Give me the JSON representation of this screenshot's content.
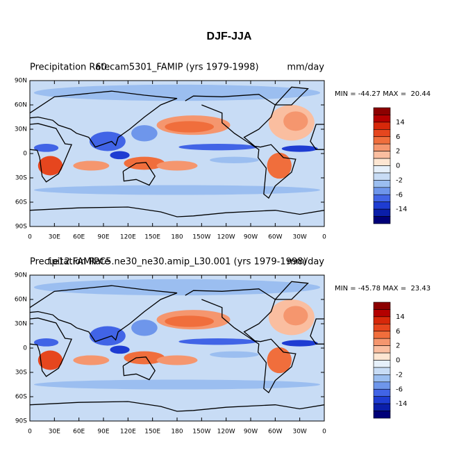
{
  "title": "DJF-JJA",
  "lon_ticks": [
    0,
    {
      "value": 30,
      "label": "30E"
    },
    {
      "value": 60,
      "label": "60E"
    },
    {
      "value": 90,
      "label": "90E"
    },
    {
      "value": 120,
      "label": "120E"
    },
    {
      "value": 150,
      "label": "150E"
    },
    {
      "value": 180,
      "label": "180"
    },
    {
      "value": 210,
      "label": "150W"
    },
    {
      "value": 240,
      "label": "120W"
    },
    {
      "value": 270,
      "label": "90W"
    },
    {
      "value": 300,
      "label": "60W"
    },
    {
      "value": 330,
      "label": "30W"
    },
    {
      "value": 360,
      "label": "0"
    }
  ],
  "lat_ticks": [
    {
      "value": 90,
      "label": "90N"
    },
    {
      "value": 60,
      "label": "60N"
    },
    {
      "value": 30,
      "label": "30N"
    },
    0,
    {
      "value": -30,
      "label": "30S"
    },
    {
      "value": -60,
      "label": "60S"
    },
    {
      "value": -90,
      "label": "90S"
    }
  ],
  "panels": [
    {
      "left_title": "Precipitation Rate",
      "center_title": "60.cam5301_FAMIP (yrs 1979-1998)",
      "right_title": "mm/day",
      "min_max": "MIN = -44.27 MAX =  20.44"
    },
    {
      "left_title": "Precipitation Rate",
      "center_title": "f.e12.FAMIPC5.ne30_ne30.amip_L30.001 (yrs 1979-1998)",
      "right_title": "mm/day",
      "min_max": "MIN = -45.78 MAX =  23.43"
    }
  ],
  "colorbar": {
    "colors": [
      "#8c0000",
      "#b40000",
      "#d7280a",
      "#e6461e",
      "#f06e3c",
      "#f5966e",
      "#fabea0",
      "#fde6d2",
      "#e6f0fa",
      "#c8dcf5",
      "#9bbef0",
      "#6e96eb",
      "#4164e6",
      "#1e3cd2",
      "#0a1eaa",
      "#000078"
    ],
    "labels": [
      14,
      6,
      2,
      0,
      -2,
      -6,
      -14
    ]
  }
}
